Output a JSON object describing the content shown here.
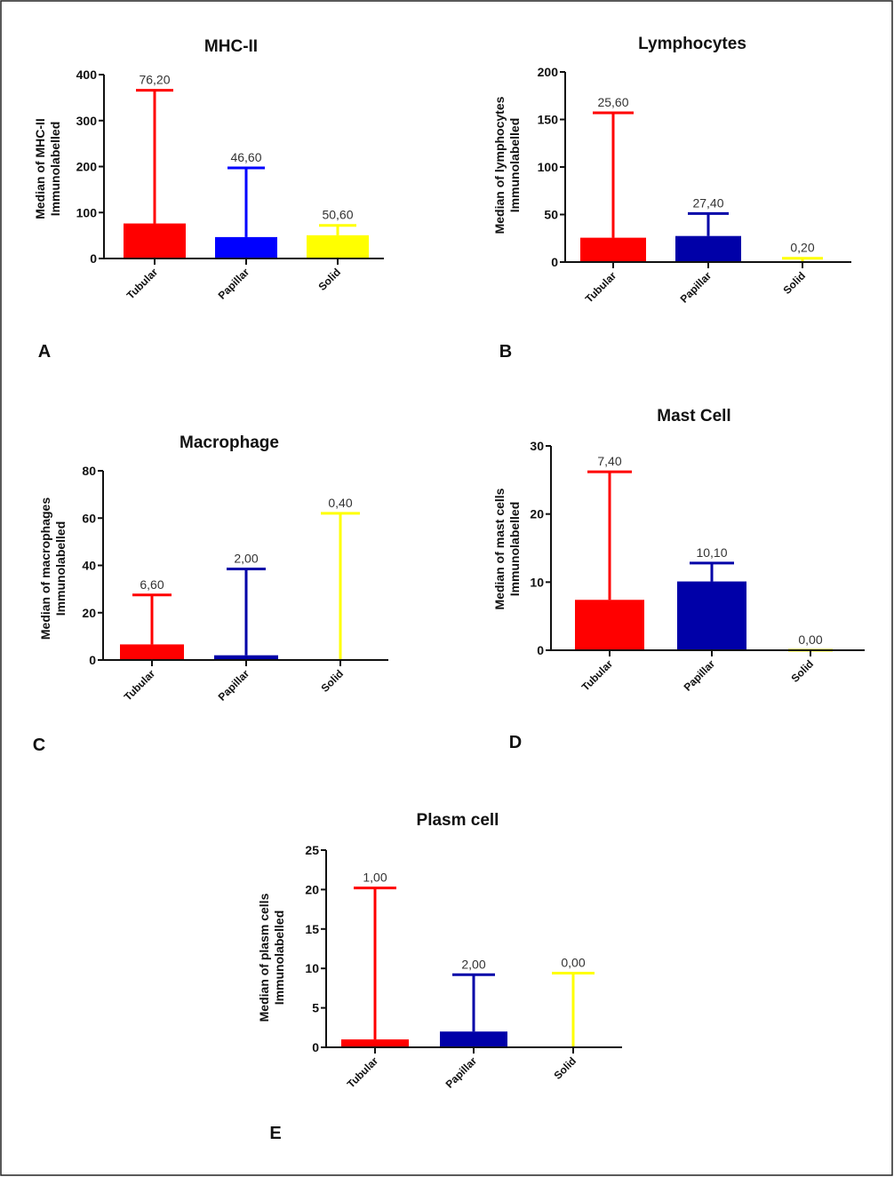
{
  "chart_data": [
    {
      "panel": "A",
      "type": "bar",
      "title": "MHC-II",
      "ylabel": [
        "Median of MHC-II",
        "Immunolabelled"
      ],
      "xlabel": "",
      "ylim": [
        0,
        400
      ],
      "yticks": [
        "0",
        "100",
        "200",
        "300",
        "400"
      ],
      "categories": [
        "Tubular",
        "Papillar",
        "Solid"
      ],
      "values": [
        76.2,
        46.6,
        50.6
      ],
      "error_upper": [
        366,
        197,
        72
      ],
      "data_labels": [
        "76,20",
        "46,60",
        "50,60"
      ],
      "colors": [
        "#ff0000",
        "#0000ff",
        "#ffff00"
      ]
    },
    {
      "panel": "B",
      "type": "bar",
      "title": "Lymphocytes",
      "ylabel": [
        "Median of lymphocytes",
        "Immunolabelled"
      ],
      "xlabel": "",
      "ylim": [
        0,
        200
      ],
      "yticks": [
        "0",
        "50",
        "100",
        "150",
        "200"
      ],
      "categories": [
        "Tubular",
        "Papillar",
        "Solid"
      ],
      "values": [
        25.6,
        27.4,
        0.2
      ],
      "error_upper": [
        157,
        51,
        4
      ],
      "data_labels": [
        "25,60",
        "27,40",
        "0,20"
      ],
      "colors": [
        "#ff0000",
        "#0000a8",
        "#ffff00"
      ]
    },
    {
      "panel": "C",
      "type": "bar",
      "title": "Macrophage",
      "ylabel": [
        "Median of macrophages",
        "Immunolabelled"
      ],
      "xlabel": "",
      "ylim": [
        0,
        80
      ],
      "yticks": [
        "0",
        "20",
        "40",
        "60",
        "80"
      ],
      "categories": [
        "Tubular",
        "Papillar",
        "Solid"
      ],
      "values": [
        6.6,
        2.0,
        0.4
      ],
      "error_upper": [
        27.5,
        38.5,
        62
      ],
      "data_labels": [
        "6,60",
        "2,00",
        "0,40"
      ],
      "colors": [
        "#ff0000",
        "#0000a8",
        "#ffff00"
      ]
    },
    {
      "panel": "D",
      "type": "bar",
      "title": "Mast Cell",
      "ylabel": [
        "Median of mast cells",
        "Immunolabelled"
      ],
      "xlabel": "",
      "ylim": [
        0,
        30
      ],
      "yticks": [
        "0",
        "10",
        "20",
        "30"
      ],
      "categories": [
        "Tubular",
        "Papillar",
        "Solid"
      ],
      "values": [
        7.4,
        10.1,
        0.0
      ],
      "error_upper": [
        26.2,
        12.8,
        0
      ],
      "data_labels": [
        "7,40",
        "10,10",
        "0,00"
      ],
      "colors": [
        "#ff0000",
        "#0000a8",
        "#ffff00"
      ]
    },
    {
      "panel": "E",
      "type": "bar",
      "title": "Plasm cell",
      "ylabel": [
        "Median of plasm cells",
        "Immunolabelled"
      ],
      "xlabel": "",
      "ylim": [
        0,
        25
      ],
      "yticks": [
        "0",
        "5",
        "10",
        "15",
        "20",
        "25"
      ],
      "categories": [
        "Tubular",
        "Papillar",
        "Solid"
      ],
      "values": [
        1.0,
        2.0,
        0.0
      ],
      "error_upper": [
        20.2,
        9.2,
        9.4
      ],
      "data_labels": [
        "1,00",
        "2,00",
        "0,00"
      ],
      "colors": [
        "#ff0000",
        "#0000a8",
        "#ffff00"
      ]
    }
  ]
}
